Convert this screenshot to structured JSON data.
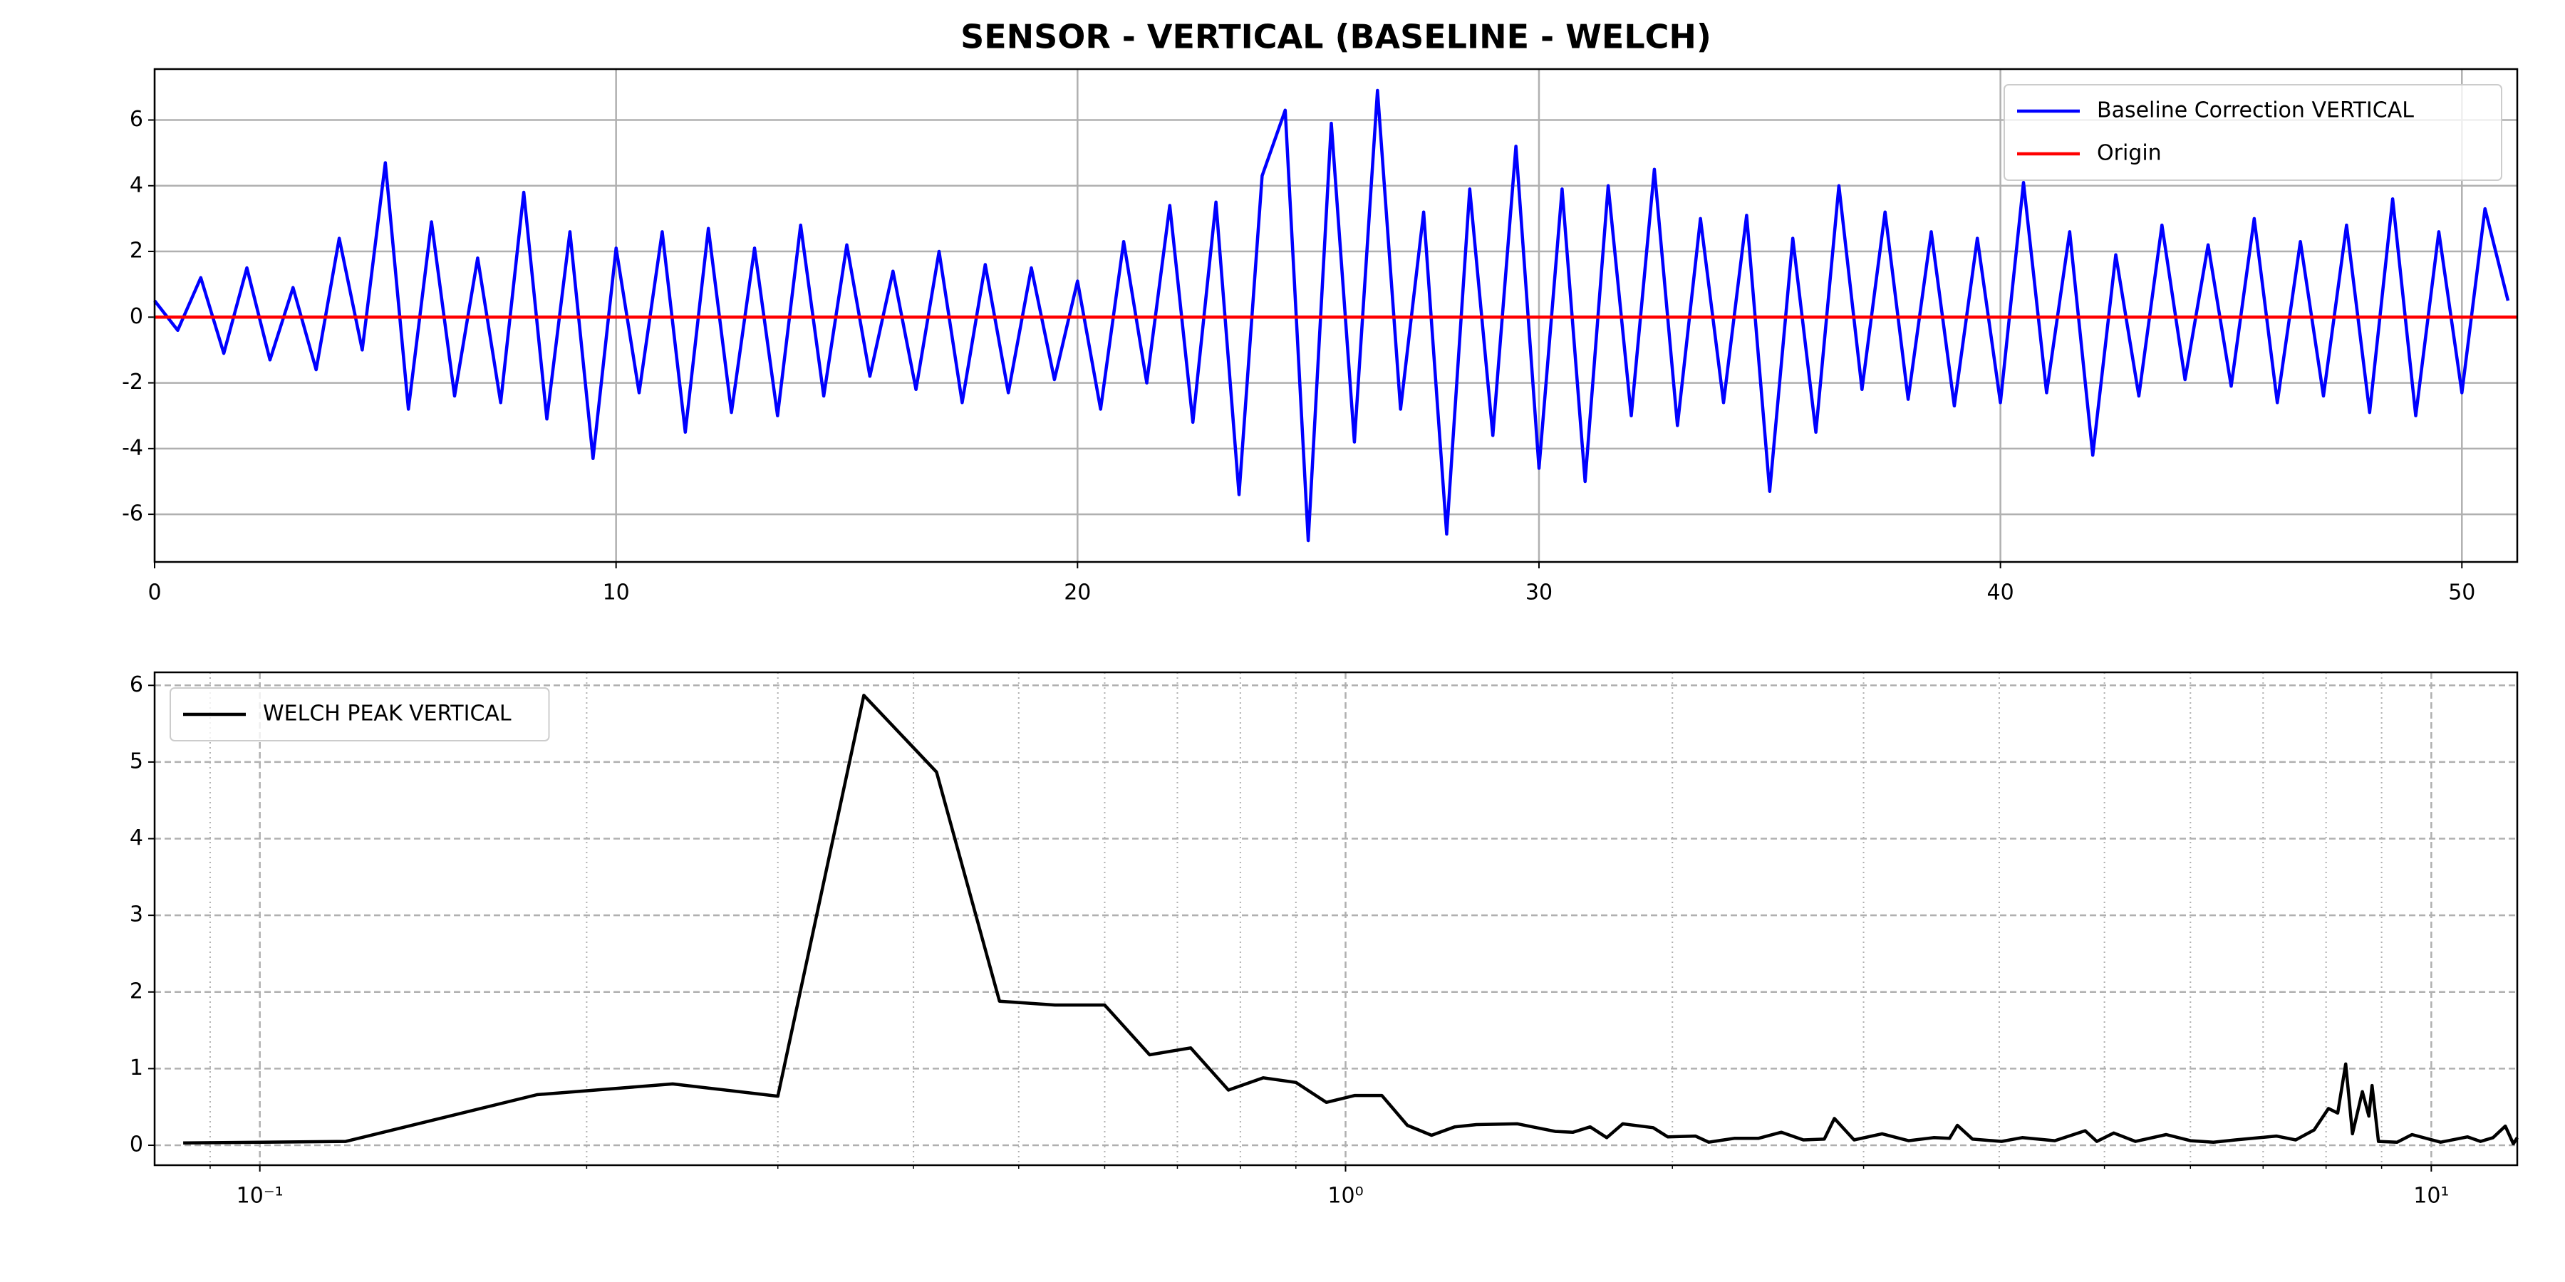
{
  "chart_data": [
    {
      "type": "line",
      "title": "SENSOR - VERTICAL (BASELINE - WELCH)",
      "x": [
        0,
        0.5,
        1,
        1.5,
        2,
        2.5,
        3,
        3.5,
        4,
        4.5,
        5,
        5.5,
        6,
        6.5,
        7,
        7.5,
        8,
        8.5,
        9,
        9.5,
        10,
        10.5,
        11,
        11.5,
        12,
        12.5,
        13,
        13.5,
        14,
        14.5,
        15,
        15.5,
        16,
        16.5,
        17,
        17.5,
        18,
        18.5,
        19,
        19.5,
        20,
        20.5,
        21,
        21.5,
        22,
        22.5,
        23,
        23.5,
        24,
        24.5,
        25,
        25.5,
        26,
        26.5,
        27,
        27.5,
        28,
        28.5,
        29,
        29.5,
        30,
        30.5,
        31,
        31.5,
        32,
        32.5,
        33,
        33.5,
        34,
        34.5,
        35,
        35.5,
        36,
        36.5,
        37,
        37.5,
        38,
        38.5,
        39,
        39.5,
        40,
        40.5,
        41,
        41.5,
        42,
        42.5,
        43,
        43.5,
        44,
        44.5,
        45,
        45.5,
        46,
        46.5,
        47,
        47.5,
        48,
        48.5,
        49,
        49.5,
        50,
        50.5,
        51
      ],
      "series": [
        {
          "name": "Baseline Correction VERTICAL",
          "color": "#0000ff",
          "values": [
            0.5,
            -0.4,
            1.2,
            -1.1,
            1.5,
            -1.3,
            0.9,
            -1.6,
            2.4,
            -1.0,
            4.7,
            -2.8,
            2.9,
            -2.4,
            1.8,
            -2.6,
            3.8,
            -3.1,
            2.6,
            -4.3,
            2.1,
            -2.3,
            2.6,
            -3.5,
            2.7,
            -2.9,
            2.1,
            -3.0,
            2.8,
            -2.4,
            2.2,
            -1.8,
            1.4,
            -2.2,
            2.0,
            -2.6,
            1.6,
            -2.3,
            1.5,
            -1.9,
            1.1,
            -2.8,
            2.3,
            -2.0,
            3.4,
            -3.2,
            3.5,
            -5.4,
            4.3,
            6.3,
            -6.8,
            5.9,
            -3.8,
            6.9,
            -2.8,
            3.2,
            -6.6,
            3.9,
            -3.6,
            5.2,
            -4.6,
            3.9,
            -5.0,
            4.0,
            -3.0,
            4.5,
            -3.3,
            3.0,
            -2.6,
            3.1,
            -5.3,
            2.4,
            -3.5,
            4.0,
            -2.2,
            3.2,
            -2.5,
            2.6,
            -2.7,
            2.4,
            -2.6,
            4.1,
            -2.3,
            2.6,
            -4.2,
            1.9,
            -2.4,
            2.8,
            -1.9,
            2.2,
            -2.1,
            3.0,
            -2.6,
            2.3,
            -2.4,
            2.8,
            -2.9,
            3.6,
            -3.0,
            2.6,
            -2.3,
            3.3,
            0.5
          ]
        },
        {
          "name": "Origin",
          "color": "#ff0000",
          "x": [
            0,
            51.2
          ],
          "values": [
            0,
            0
          ]
        }
      ],
      "xlim": [
        0,
        51.2
      ],
      "xticks": [
        0,
        10,
        20,
        30,
        40,
        50
      ],
      "ylim": [
        -7.45,
        7.55
      ],
      "yticks": [
        -6,
        -4,
        -2,
        0,
        2,
        4,
        6
      ],
      "grid": "solid",
      "legend": "upper right"
    },
    {
      "type": "line",
      "xscale": "log",
      "x": [
        0.085,
        0.12,
        0.18,
        0.24,
        0.3,
        0.36,
        0.42,
        0.48,
        0.54,
        0.6,
        0.66,
        0.72,
        0.78,
        0.84,
        0.9,
        0.96,
        1.02,
        1.08,
        1.14,
        1.2,
        1.26,
        1.32,
        1.44,
        1.56,
        1.62,
        1.68,
        1.74,
        1.8,
        1.92,
        1.98,
        2.1,
        2.16,
        2.28,
        2.4,
        2.52,
        2.64,
        2.76,
        2.82,
        2.94,
        3.12,
        3.3,
        3.48,
        3.6,
        3.66,
        3.78,
        4.02,
        4.2,
        4.5,
        4.8,
        4.92,
        5.1,
        5.34,
        5.7,
        6.0,
        6.3,
        6.6,
        7.2,
        7.5,
        7.8,
        8.04,
        8.2,
        8.34,
        8.46,
        8.64,
        8.76,
        8.82,
        8.94,
        9.3,
        9.6,
        10.2,
        10.8,
        11.1,
        11.4,
        11.7,
        11.9,
        12.0
      ],
      "series": [
        {
          "name": "WELCH PEAK VERTICAL",
          "color": "#000000",
          "values": [
            0.03,
            0.05,
            0.66,
            0.8,
            0.64,
            5.87,
            4.87,
            1.88,
            1.83,
            1.83,
            1.18,
            1.27,
            0.72,
            0.88,
            0.82,
            0.56,
            0.65,
            0.65,
            0.26,
            0.13,
            0.24,
            0.27,
            0.28,
            0.18,
            0.17,
            0.24,
            0.1,
            0.28,
            0.23,
            0.11,
            0.12,
            0.04,
            0.09,
            0.09,
            0.17,
            0.07,
            0.08,
            0.35,
            0.07,
            0.15,
            0.06,
            0.1,
            0.09,
            0.26,
            0.08,
            0.05,
            0.1,
            0.06,
            0.19,
            0.05,
            0.16,
            0.05,
            0.14,
            0.06,
            0.04,
            0.07,
            0.12,
            0.07,
            0.2,
            0.48,
            0.42,
            1.06,
            0.15,
            0.7,
            0.38,
            0.78,
            0.05,
            0.04,
            0.14,
            0.04,
            0.11,
            0.05,
            0.1,
            0.25,
            0.02,
            0.1
          ]
        }
      ],
      "xlim": [
        0.08,
        12
      ],
      "xticks": [
        {
          "value": 0.1,
          "label": "10⁻¹"
        },
        {
          "value": 1,
          "label": "10⁰"
        },
        {
          "value": 10,
          "label": "10¹"
        }
      ],
      "xminorticks": [
        0.09,
        0.2,
        0.3,
        0.4,
        0.5,
        0.6,
        0.7,
        0.8,
        0.9,
        2,
        3,
        4,
        5,
        6,
        7,
        8,
        9
      ],
      "ylim": [
        -0.26,
        6.17
      ],
      "yticks": [
        0,
        1,
        2,
        3,
        4,
        5,
        6
      ],
      "grid": "dashed",
      "legend": "upper left"
    }
  ]
}
